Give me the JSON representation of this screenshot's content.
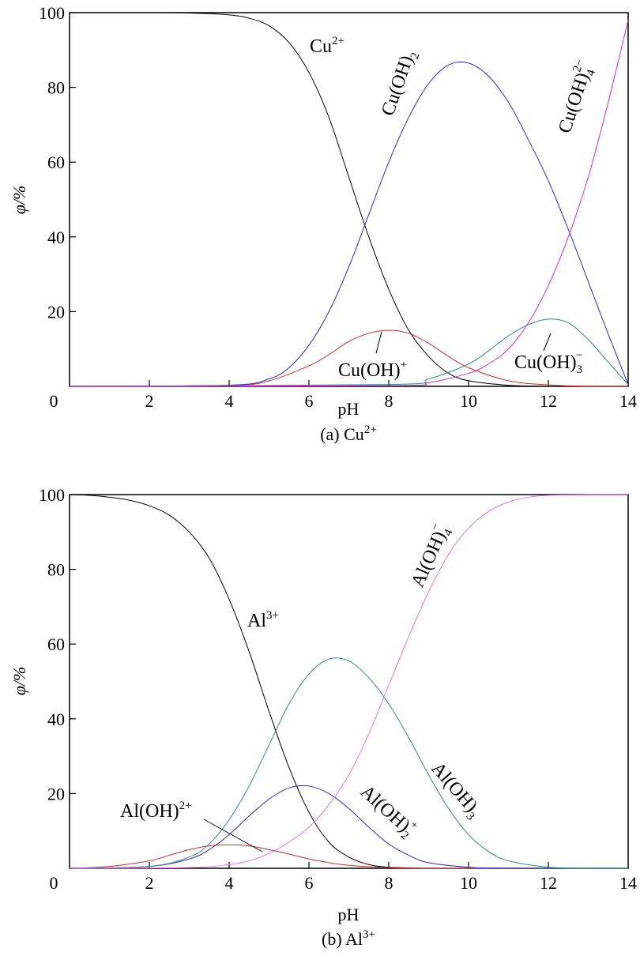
{
  "chart_data": [
    {
      "type": "line",
      "caption": "(a) Cu",
      "caption_sup": "2+",
      "xlabel": "pH",
      "ylabel": "φ/%",
      "xlim": [
        0,
        14
      ],
      "ylim": [
        0,
        100
      ],
      "xticks": [
        "0",
        "2",
        "4",
        "6",
        "8",
        "10",
        "12",
        "14"
      ],
      "yticks": [
        "20",
        "40",
        "60",
        "80",
        "100"
      ],
      "grid": false,
      "legend": "none",
      "series": [
        {
          "name": "Cu2+",
          "color": "#000000",
          "x": [
            0,
            1,
            2,
            3,
            4,
            4.5,
            5,
            5.5,
            6,
            6.5,
            7,
            7.5,
            8,
            8.5,
            9,
            9.5,
            10,
            11,
            12,
            13,
            14
          ],
          "y": [
            100,
            100,
            100,
            99.9,
            99.4,
            98.5,
            96.5,
            92,
            84,
            72,
            56,
            40,
            26,
            15,
            8,
            3.5,
            1.5,
            0.3,
            0,
            0,
            0
          ]
        },
        {
          "name": "Cu(OH)+",
          "color": "#d42a2a",
          "x": [
            0,
            4,
            5,
            6,
            6.5,
            7,
            7.5,
            8,
            8.5,
            9,
            9.5,
            10,
            11,
            12,
            13,
            14
          ],
          "y": [
            0,
            0.3,
            1.5,
            5.5,
            8.5,
            12,
            14.2,
            15,
            14.2,
            11.5,
            8,
            5,
            1.5,
            0.4,
            0,
            0
          ]
        },
        {
          "name": "Cu(OH)2",
          "color": "#2a2ad0",
          "x": [
            0,
            4,
            5,
            5.5,
            6,
            6.5,
            7,
            7.5,
            8,
            8.5,
            9,
            9.5,
            10,
            10.5,
            11,
            11.5,
            12,
            12.5,
            13,
            13.5,
            14
          ],
          "y": [
            0,
            0.3,
            2,
            5,
            11,
            20,
            32,
            46,
            60,
            72,
            81,
            86,
            86.5,
            83,
            76,
            66,
            55,
            42,
            28,
            14,
            0.5
          ]
        },
        {
          "name": "Cu(OH)3-",
          "color": "#2e8b8b",
          "x": [
            0,
            8,
            9,
            10,
            10.5,
            11,
            11.5,
            12,
            12.5,
            13,
            13.5,
            14
          ],
          "y": [
            0,
            0.5,
            2,
            6,
            9.5,
            13.5,
            16.5,
            18,
            17,
            12.5,
            6.5,
            0.5
          ]
        },
        {
          "name": "Cu(OH)4 2-",
          "color": "#d030d0",
          "x": [
            0,
            8,
            9,
            10,
            10.5,
            11,
            11.5,
            12,
            12.5,
            13,
            13.5,
            14
          ],
          "y": [
            0,
            0.2,
            1,
            3.5,
            6,
            10,
            17,
            27,
            40,
            56,
            76,
            98
          ]
        }
      ]
    },
    {
      "type": "line",
      "caption": "(b) Al",
      "caption_sup": "3+",
      "xlabel": "pH",
      "ylabel": "φ/%",
      "xlim": [
        0,
        14
      ],
      "ylim": [
        0,
        100
      ],
      "xticks": [
        "0",
        "2",
        "4",
        "6",
        "8",
        "10",
        "12",
        "14"
      ],
      "yticks": [
        "20",
        "40",
        "60",
        "80",
        "100"
      ],
      "grid": false,
      "legend": "none",
      "series": [
        {
          "name": "Al3+",
          "color": "#000000",
          "x": [
            0,
            0.5,
            1,
            1.5,
            2,
            2.5,
            3,
            3.5,
            4,
            4.5,
            5,
            5.5,
            6,
            6.5,
            7,
            7.5,
            8,
            9,
            10,
            14
          ],
          "y": [
            100,
            99.8,
            99.3,
            98.5,
            97,
            94.5,
            90,
            83,
            72,
            58,
            42,
            27,
            15,
            7,
            3,
            1,
            0.3,
            0,
            0,
            0
          ]
        },
        {
          "name": "Al(OH)2+",
          "color": "#d42a2a",
          "x": [
            0,
            1,
            2,
            2.5,
            3,
            3.5,
            4,
            4.5,
            5,
            5.5,
            6,
            6.5,
            7,
            8,
            9,
            14
          ],
          "y": [
            0,
            0.5,
            2,
            3.5,
            5,
            6,
            6.3,
            6,
            5,
            3.8,
            2.5,
            1.5,
            0.8,
            0.2,
            0,
            0
          ]
        },
        {
          "name": "Al(OH)2 +",
          "color": "#2a2ad0",
          "x": [
            0,
            2,
            3,
            3.5,
            4,
            4.5,
            5,
            5.5,
            6,
            6.5,
            7,
            7.5,
            8,
            8.5,
            9,
            10,
            11,
            14
          ],
          "y": [
            0,
            0.5,
            2.5,
            5,
            9,
            14,
            18.5,
            21.5,
            22,
            20,
            16,
            11,
            6.5,
            3.5,
            1.5,
            0.3,
            0,
            0
          ]
        },
        {
          "name": "Al(OH)3",
          "color": "#2e8b8b",
          "x": [
            0,
            2,
            3,
            3.5,
            4,
            4.5,
            5,
            5.5,
            6,
            6.5,
            7,
            7.5,
            8,
            8.5,
            9,
            9.5,
            10,
            10.5,
            11,
            12,
            13,
            14
          ],
          "y": [
            0,
            0.5,
            3,
            6.5,
            13,
            22,
            33,
            44,
            52,
            56,
            55.5,
            51,
            44,
            35,
            25,
            16,
            9,
            4.5,
            2,
            0.3,
            0,
            0
          ]
        },
        {
          "name": "Al(OH)4-",
          "color": "#e07ae0",
          "x": [
            0,
            3,
            4,
            4.5,
            5,
            5.5,
            6,
            6.5,
            7,
            7.5,
            8,
            8.5,
            9,
            9.5,
            10,
            10.5,
            11,
            11.5,
            12,
            13,
            14
          ],
          "y": [
            0,
            0.2,
            1,
            2,
            4,
            7,
            11,
            17,
            25,
            36,
            49,
            62,
            74,
            84,
            91,
            95.5,
            98,
            99.3,
            99.8,
            100,
            100
          ]
        }
      ]
    }
  ],
  "labels": {
    "a": {
      "cu2": {
        "main": "Cu",
        "sup": "2+"
      },
      "cuoh2": {
        "main": "Cu(OH)",
        "sub": "2"
      },
      "cuoh4": {
        "main": "Cu(OH)",
        "sub": "4",
        "sup": "2−"
      },
      "cuoh": {
        "main": "Cu(OH)",
        "sup": "+"
      },
      "cuoh3": {
        "main": "Cu(OH)",
        "sub": "3",
        "sup": "−"
      }
    },
    "b": {
      "al3": {
        "main": "Al",
        "sup": "3+"
      },
      "aloh4": {
        "main": "Al(OH)",
        "sub": "4",
        "sup": "−"
      },
      "aloh": {
        "main": "Al(OH)",
        "sup": "2+"
      },
      "aloh2": {
        "main": "Al(OH)",
        "sub": "2",
        "sup": "+"
      },
      "aloh3": {
        "main": "Al(OH)",
        "sub": "3"
      }
    }
  }
}
